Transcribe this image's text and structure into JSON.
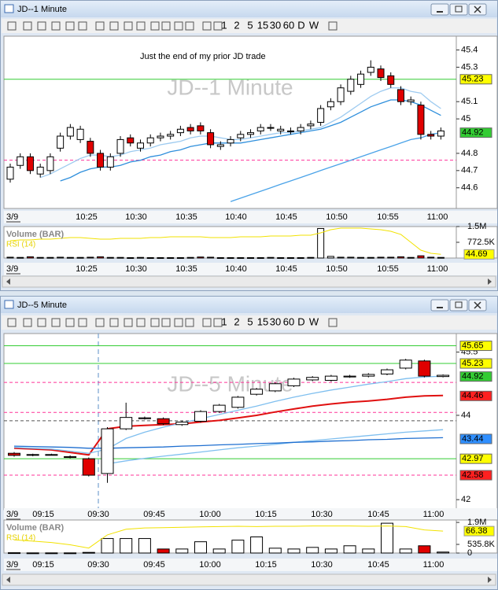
{
  "windows": [
    {
      "title": "JD--1 Minute",
      "toolbar": [
        "1",
        "2",
        "5",
        "15",
        "30",
        "60",
        "D",
        "W"
      ],
      "date": "3/9",
      "xticks": [
        "10:25",
        "10:30",
        "10:35",
        "10:40",
        "10:45",
        "10:50",
        "10:55",
        "11:00"
      ],
      "price_panel": {
        "watermark": "JD--1 Minute",
        "annotation": "Just the end of my prior JD trade",
        "ylim": [
          44.48,
          45.48
        ],
        "yticks": [
          44.6,
          44.7,
          44.8,
          45,
          45.1,
          45.3,
          45.4
        ],
        "markers": [
          {
            "value": 45.23,
            "color": "#ffff00"
          },
          {
            "value": 44.92,
            "color": "#33cc33"
          }
        ],
        "hlines": [
          {
            "value": 45.23,
            "color": "#33cc33",
            "dash": false
          },
          {
            "value": 44.76,
            "color": "#ff3399",
            "dash": true
          }
        ],
        "candles": {
          "open": [
            44.65,
            44.73,
            44.78,
            44.68,
            44.7,
            44.83,
            44.9,
            44.88,
            44.87,
            44.8,
            44.72,
            44.8,
            44.89,
            44.83,
            44.86,
            44.89,
            44.9,
            44.92,
            44.95,
            44.96,
            44.92,
            44.84,
            44.86,
            44.89,
            44.91,
            44.93,
            44.95,
            44.93,
            44.93,
            44.93,
            44.96,
            44.98,
            45.07,
            45.1,
            45.16,
            45.2,
            45.27,
            45.29,
            45.25,
            45.17,
            45.1,
            45.08,
            44.91,
            44.9
          ],
          "high": [
            44.74,
            44.8,
            44.8,
            44.74,
            44.8,
            44.92,
            44.97,
            44.96,
            44.89,
            44.82,
            44.8,
            44.9,
            44.91,
            44.88,
            44.91,
            44.92,
            44.93,
            44.96,
            44.97,
            44.98,
            44.94,
            44.87,
            44.9,
            44.93,
            44.94,
            44.97,
            44.97,
            44.96,
            44.95,
            44.97,
            44.99,
            45.08,
            45.12,
            45.2,
            45.25,
            45.28,
            45.34,
            45.31,
            45.27,
            45.19,
            45.13,
            45.1,
            44.93,
            44.95
          ],
          "low": [
            44.63,
            44.71,
            44.68,
            44.66,
            44.68,
            44.81,
            44.88,
            44.86,
            44.78,
            44.7,
            44.7,
            44.78,
            44.84,
            44.81,
            44.84,
            44.87,
            44.88,
            44.9,
            44.91,
            44.91,
            44.83,
            44.82,
            44.84,
            44.87,
            44.89,
            44.91,
            44.93,
            44.91,
            44.91,
            44.91,
            44.94,
            44.96,
            45.05,
            45.08,
            45.14,
            45.18,
            45.25,
            45.22,
            45.18,
            45.08,
            45.08,
            44.88,
            44.88,
            44.88
          ],
          "close": [
            44.72,
            44.78,
            44.7,
            44.72,
            44.78,
            44.9,
            44.95,
            44.94,
            44.8,
            44.72,
            44.78,
            44.88,
            44.86,
            44.86,
            44.89,
            44.9,
            44.91,
            44.94,
            44.93,
            44.93,
            44.85,
            44.85,
            44.88,
            44.91,
            44.92,
            44.95,
            44.95,
            44.94,
            44.93,
            44.95,
            44.97,
            45.06,
            45.1,
            45.18,
            45.23,
            45.26,
            45.3,
            45.24,
            45.2,
            45.1,
            45.11,
            44.91,
            44.9,
            44.93
          ]
        },
        "lines": [
          {
            "color": "#9ecbf0",
            "values": [
              null,
              null,
              null,
              44.66,
              44.68,
              44.71,
              44.74,
              44.77,
              44.79,
              44.79,
              44.78,
              44.79,
              44.81,
              44.82,
              44.83,
              44.85,
              44.86,
              44.87,
              44.89,
              44.9,
              44.9,
              44.89,
              44.88,
              44.88,
              44.89,
              44.9,
              44.91,
              44.92,
              44.92,
              44.93,
              44.94,
              44.95,
              44.98,
              45.01,
              45.05,
              45.09,
              45.13,
              45.16,
              45.18,
              45.18,
              45.16,
              45.15,
              45.1,
              45.06
            ]
          },
          {
            "color": "#2f8fdc",
            "values": [
              null,
              null,
              null,
              null,
              null,
              44.64,
              44.66,
              44.69,
              44.71,
              44.72,
              44.72,
              44.73,
              44.75,
              44.76,
              44.78,
              44.79,
              44.81,
              44.82,
              44.84,
              44.85,
              44.86,
              44.86,
              44.86,
              44.86,
              44.87,
              44.88,
              44.89,
              44.9,
              44.91,
              44.92,
              44.93,
              44.94,
              44.96,
              44.98,
              45.01,
              45.04,
              45.07,
              45.09,
              45.11,
              45.11,
              45.1,
              45.08,
              45.05,
              45.02
            ]
          },
          {
            "color": "#4aa3e8",
            "values": [
              null,
              null,
              null,
              null,
              null,
              null,
              null,
              null,
              null,
              null,
              null,
              null,
              null,
              null,
              null,
              null,
              null,
              null,
              null,
              null,
              null,
              null,
              44.52,
              44.54,
              44.56,
              44.58,
              44.6,
              44.62,
              44.64,
              44.66,
              44.68,
              44.7,
              44.72,
              44.74,
              44.76,
              44.78,
              44.8,
              44.82,
              44.84,
              44.86,
              44.88,
              44.89,
              44.91,
              44.92
            ]
          }
        ]
      },
      "volume_panel": {
        "label": "Volume (BAR)",
        "ylim": [
          0,
          1545000
        ],
        "yticks": [
          {
            "value": 1545000,
            "label": "1.5M"
          },
          {
            "value": 772500,
            "label": "772.5K"
          }
        ],
        "values": [
          40000,
          30000,
          60000,
          30000,
          30000,
          40000,
          30000,
          30000,
          40000,
          60000,
          30000,
          30000,
          20000,
          30000,
          20000,
          20000,
          20000,
          20000,
          30000,
          50000,
          40000,
          20000,
          20000,
          20000,
          20000,
          20000,
          30000,
          20000,
          20000,
          20000,
          30000,
          1450000,
          80000,
          40000,
          40000,
          30000,
          30000,
          40000,
          40000,
          60000,
          30000,
          110000,
          40000,
          30000
        ],
        "rsi": {
          "label": "RSI (14)",
          "color": "#f2e200",
          "ylim": [
            40,
            80
          ],
          "values": [
            62,
            63,
            63,
            64,
            64,
            65,
            66,
            66,
            65,
            64,
            64,
            65,
            65,
            65,
            66,
            66,
            67,
            67,
            67,
            67,
            66,
            66,
            66,
            67,
            67,
            67,
            68,
            68,
            68,
            69,
            69,
            72,
            76,
            78,
            78,
            78,
            77,
            76,
            74,
            70,
            60,
            50,
            46,
            44.69
          ]
        }
      }
    },
    {
      "title": "JD--5 Minute",
      "toolbar": [
        "1",
        "2",
        "5",
        "15",
        "30",
        "60",
        "D",
        "W"
      ],
      "date": "3/9",
      "xticks": [
        "09:15",
        "09:30",
        "09:45",
        "10:00",
        "10:15",
        "10:30",
        "10:45",
        "11:00"
      ],
      "price_panel": {
        "watermark": "JD--5 Minute",
        "ylim": [
          41.76,
          45.94
        ],
        "yticks": [
          42,
          44,
          45.5
        ],
        "markers": [
          {
            "value": 45.65,
            "color": "#ffff00"
          },
          {
            "value": 45.23,
            "color": "#ffff00"
          },
          {
            "value": 44.92,
            "color": "#33cc33"
          },
          {
            "value": 44.46,
            "color": "#ff2020"
          },
          {
            "value": 43.44,
            "color": "#2f8fff"
          },
          {
            "value": 42.97,
            "color": "#ffff00"
          },
          {
            "value": 42.58,
            "color": "#ff2020"
          }
        ],
        "hlines": [
          {
            "value": 45.65,
            "color": "#33cc33",
            "dash": false
          },
          {
            "value": 45.23,
            "color": "#33cc33",
            "dash": false
          },
          {
            "value": 42.97,
            "color": "#33cc33",
            "dash": false
          },
          {
            "value": 44.78,
            "color": "#ff3399",
            "dash": true
          },
          {
            "value": 44.07,
            "color": "#ff3399",
            "dash": true
          },
          {
            "value": 42.58,
            "color": "#ff3399",
            "dash": true
          },
          {
            "value": 43.87,
            "color": "#555555",
            "dash": true
          }
        ],
        "candles": {
          "open": [
            43.1,
            43.06,
            43.07,
            43.02,
            42.97,
            42.62,
            43.68,
            43.92,
            43.92,
            43.78,
            43.86,
            44.09,
            44.19,
            44.5,
            44.58,
            44.7,
            44.84,
            44.83,
            44.91,
            44.93,
            44.98,
            45.12,
            45.29,
            44.92
          ],
          "high": [
            43.13,
            43.09,
            43.09,
            43.05,
            43.0,
            43.72,
            44.3,
            43.97,
            43.95,
            43.87,
            44.12,
            44.27,
            44.46,
            44.65,
            44.78,
            44.89,
            44.93,
            44.96,
            44.96,
            45.0,
            45.11,
            45.34,
            45.32,
            44.97
          ],
          "low": [
            43.02,
            43.03,
            43.05,
            42.98,
            42.55,
            42.4,
            43.65,
            43.9,
            43.77,
            43.75,
            43.83,
            44.06,
            44.16,
            44.47,
            44.55,
            44.67,
            44.81,
            44.8,
            44.89,
            44.9,
            44.95,
            45.09,
            44.9,
            44.9
          ],
          "close": [
            43.05,
            43.07,
            43.07,
            43.0,
            42.58,
            43.68,
            43.95,
            43.94,
            43.8,
            43.84,
            44.09,
            44.24,
            44.43,
            44.62,
            44.75,
            44.86,
            44.9,
            44.93,
            44.93,
            44.97,
            45.08,
            45.31,
            44.93,
            44.95
          ]
        },
        "lines": [
          {
            "color": "#e01010",
            "values": [
              43.22,
              43.2,
              43.18,
              43.12,
              43.06,
              43.68,
              43.74,
              43.76,
              43.78,
              43.8,
              43.84,
              43.88,
              43.94,
              44.0,
              44.08,
              44.15,
              44.22,
              44.27,
              44.31,
              44.34,
              44.38,
              44.43,
              44.46,
              44.47
            ]
          },
          {
            "color": "#7fbfef",
            "values": [
              43.24,
              43.22,
              43.2,
              43.15,
              43.1,
              43.2,
              43.45,
              43.6,
              43.72,
              43.82,
              43.92,
              44.02,
              44.12,
              44.22,
              44.33,
              44.43,
              44.52,
              44.6,
              44.67,
              44.74,
              44.8,
              44.87,
              44.91,
              44.93
            ]
          },
          {
            "color": "#7fbfef",
            "values": [
              null,
              null,
              null,
              null,
              null,
              42.85,
              42.92,
              42.98,
              43.03,
              43.08,
              43.13,
              43.18,
              43.23,
              43.27,
              43.31,
              43.36,
              43.4,
              43.44,
              43.48,
              43.52,
              43.56,
              43.6,
              43.63,
              43.66
            ]
          },
          {
            "color": "#1f6fd0",
            "values": [
              43.27,
              43.26,
              43.25,
              43.24,
              43.22,
              43.22,
              43.23,
              43.24,
              43.25,
              43.27,
              43.28,
              43.3,
              43.31,
              43.33,
              43.34,
              43.36,
              43.37,
              43.39,
              43.4,
              43.42,
              43.43,
              43.45,
              43.46,
              43.47
            ]
          }
        ]
      },
      "volume_panel": {
        "label": "Volume (BAR)",
        "ylim": [
          0,
          2050000
        ],
        "yticks": [
          {
            "value": 1900000,
            "label": "1.9M"
          },
          {
            "value": 535800,
            "label": "535.8K"
          },
          0
        ],
        "values": [
          20000,
          10000,
          10000,
          10000,
          40000,
          900000,
          900000,
          900000,
          250000,
          250000,
          700000,
          250000,
          800000,
          1000000,
          300000,
          250000,
          350000,
          250000,
          450000,
          250000,
          1850000,
          250000,
          450000,
          60000
        ],
        "rsi": {
          "label": "RSI (14)",
          "color": "#f2e200",
          "ylim": [
            0,
            100
          ],
          "values": [
            40,
            36,
            32,
            25,
            15,
            55,
            72,
            76,
            77,
            78,
            79,
            80,
            81,
            80,
            81,
            81,
            82,
            82,
            82,
            81,
            82,
            80,
            70,
            66.38
          ]
        }
      }
    }
  ]
}
